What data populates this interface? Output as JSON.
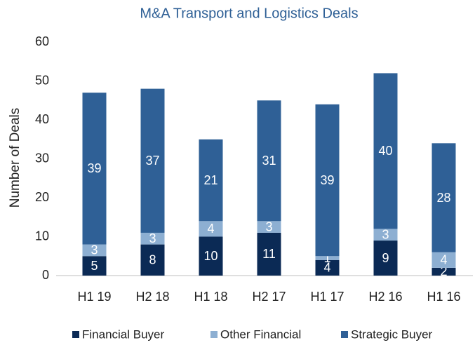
{
  "chart_data": {
    "type": "stacked_bar",
    "title": "M&A Transport and Logistics Deals",
    "y_label": "Number of Deals",
    "categories": [
      "H1 19",
      "H2 18",
      "H1 18",
      "H2 17",
      "H1 17",
      "H2 16",
      "H1 16"
    ],
    "series": [
      {
        "name": "Financial Buyer",
        "color": "#0b2a55",
        "values": [
          5,
          8,
          10,
          11,
          4,
          9,
          2
        ]
      },
      {
        "name": "Other Financial",
        "color": "#8dafd2",
        "values": [
          3,
          3,
          4,
          3,
          1,
          3,
          4
        ]
      },
      {
        "name": "Strategic Buyer",
        "color": "#2f6096",
        "values": [
          39,
          37,
          21,
          31,
          39,
          40,
          28
        ]
      }
    ],
    "ylim": [
      0,
      60
    ],
    "yticks": [
      0,
      10,
      20,
      30,
      40,
      50,
      60
    ],
    "legend": "bottom",
    "grid": false
  }
}
